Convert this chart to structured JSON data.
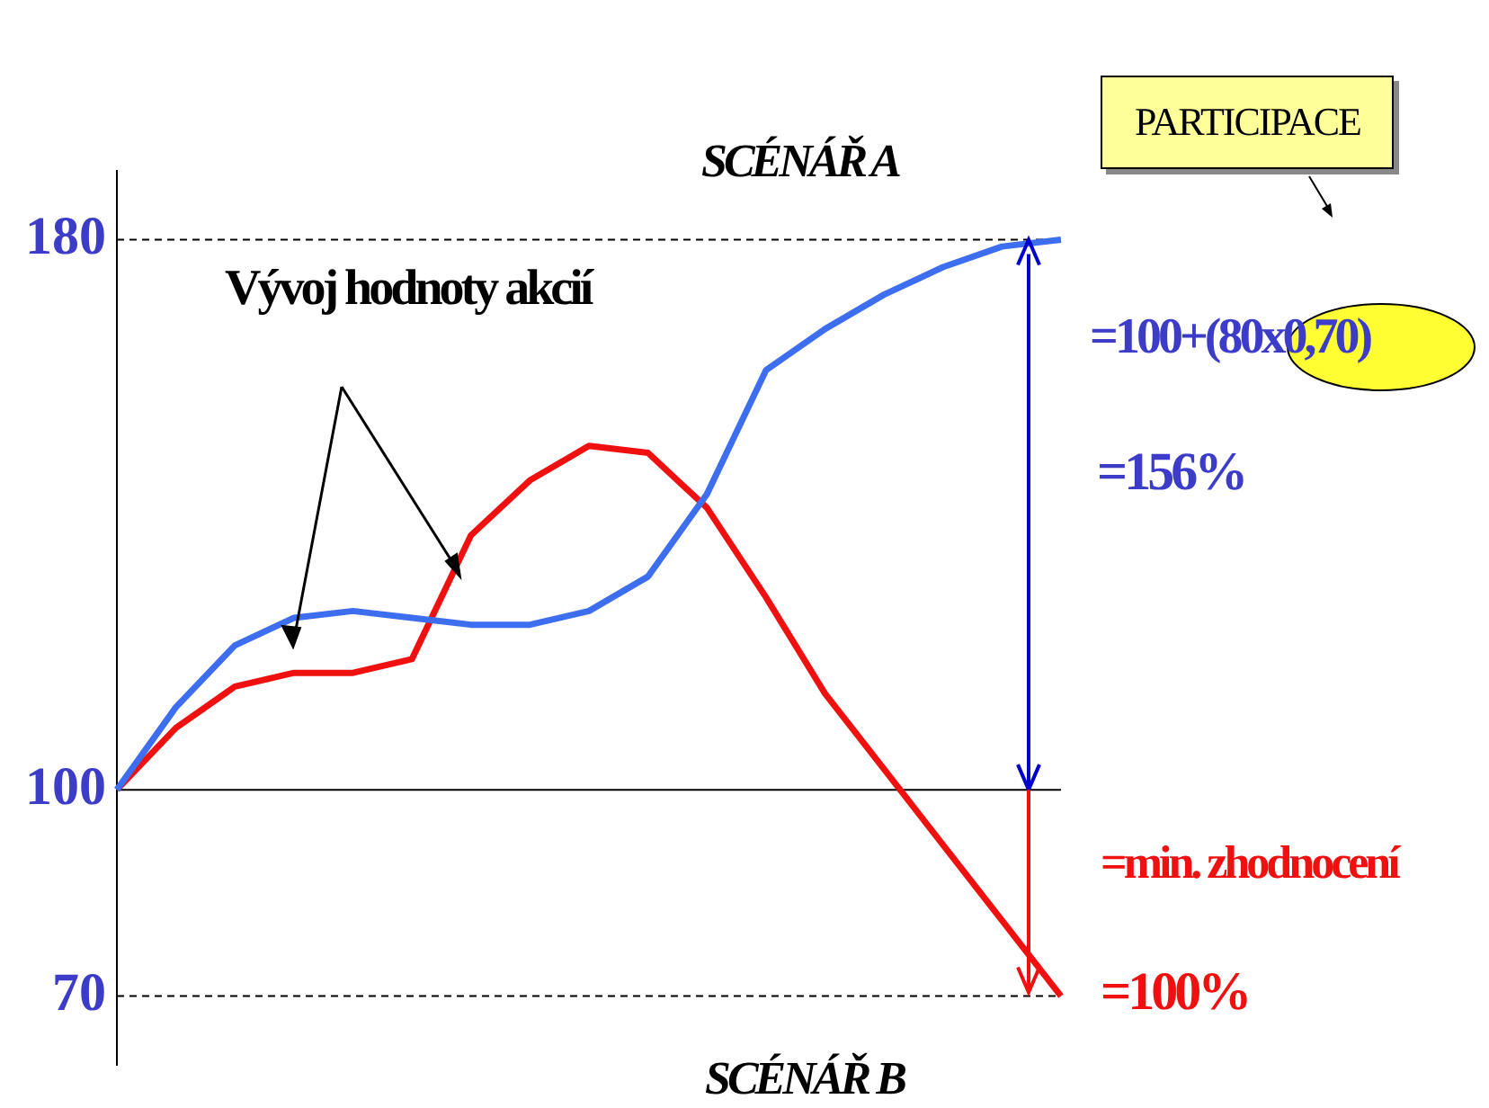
{
  "chart_data": {
    "type": "line",
    "categories": [
      null,
      null,
      null,
      null,
      null,
      null,
      null,
      null,
      null,
      null,
      null,
      null,
      null,
      null,
      null,
      null,
      null
    ],
    "ylim": [
      60,
      190
    ],
    "yticks": [
      70,
      100,
      180
    ],
    "tick_labels": "y",
    "grid": false,
    "legend": false,
    "marker": "none",
    "line_style": "solid",
    "series": [
      {
        "color": "#3d6ef0",
        "values": [
          100,
          112,
          121,
          125,
          126,
          125,
          124,
          124,
          126,
          131,
          143,
          161,
          167,
          172,
          176,
          179,
          180
        ]
      },
      {
        "color": "#f01010",
        "values": [
          100,
          109,
          115,
          117,
          117,
          119,
          137,
          145,
          150,
          149,
          141,
          128,
          114,
          103,
          92,
          81,
          70
        ]
      }
    ],
    "ref_lines": [
      {
        "axis": "y",
        "value": 180,
        "color": "#000000",
        "line_style": "dashed"
      },
      {
        "axis": "y",
        "value": 100,
        "color": "#000000",
        "line_style": "solid"
      },
      {
        "axis": "y",
        "value": 70,
        "color": "#000000",
        "line_style": "dashed"
      }
    ],
    "annotations": [
      "SCÉNÁŘ A",
      "SCÉNÁŘ B",
      "Vývoj hodnoty akcií",
      "PARTICIPACE",
      "=100+(80x0,70)",
      "=156%",
      "=min. zhodnocení",
      "=100%"
    ]
  }
}
